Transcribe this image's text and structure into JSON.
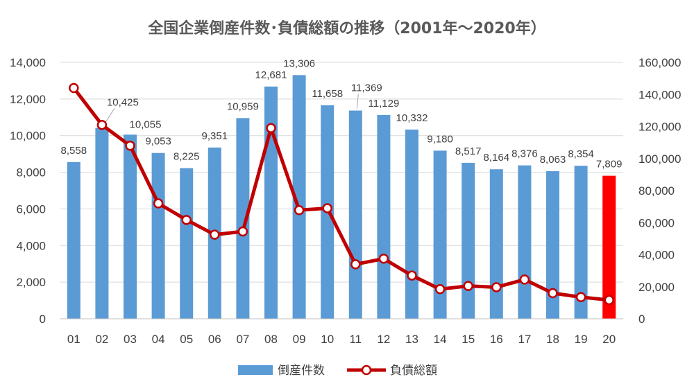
{
  "chart_data": {
    "type": "bar",
    "title": "全国企業倒産件数･負債総額の推移（2001年～2020年）",
    "categories": [
      "01",
      "02",
      "03",
      "04",
      "05",
      "06",
      "07",
      "08",
      "09",
      "10",
      "11",
      "12",
      "13",
      "14",
      "15",
      "16",
      "17",
      "18",
      "19",
      "20"
    ],
    "series": [
      {
        "name": "倒産件数",
        "type": "bar",
        "axis": "left",
        "values": [
          8558,
          10425,
          10055,
          9053,
          8225,
          9351,
          10959,
          12681,
          13306,
          11658,
          11369,
          11129,
          10332,
          9180,
          8517,
          8164,
          8376,
          8063,
          8354,
          7809
        ],
        "data_labels": [
          "8,558",
          "10,425",
          "10,055",
          "9,053",
          "8,225",
          "9,351",
          "10,959",
          "12,681",
          "13,306",
          "11,658",
          "11,369",
          "11,129",
          "10,332",
          "9,180",
          "8,517",
          "8,164",
          "8,376",
          "8,063",
          "8,354",
          "7,809"
        ],
        "color": "#5b9bd5",
        "highlight_color": "#ff0000",
        "highlight_index": 19
      },
      {
        "name": "負債総額",
        "type": "line",
        "axis": "right",
        "values": [
          144000,
          121000,
          108000,
          72000,
          61700,
          52500,
          54500,
          119000,
          67800,
          69000,
          34000,
          37500,
          27000,
          18500,
          20500,
          19700,
          24500,
          16000,
          13500,
          11700
        ],
        "color": "#c00000"
      }
    ],
    "y_left": {
      "min": 0,
      "max": 14000,
      "step": 2000,
      "tick_labels": [
        "0",
        "2,000",
        "4,000",
        "6,000",
        "8,000",
        "10,000",
        "12,000",
        "14,000"
      ]
    },
    "y_right": {
      "min": 0,
      "max": 160000,
      "step": 20000,
      "tick_labels": [
        "0",
        "20,000",
        "40,000",
        "60,000",
        "80,000",
        "100,000",
        "120,000",
        "140,000",
        "160,000"
      ]
    },
    "grid": true,
    "legend_position": "bottom"
  }
}
